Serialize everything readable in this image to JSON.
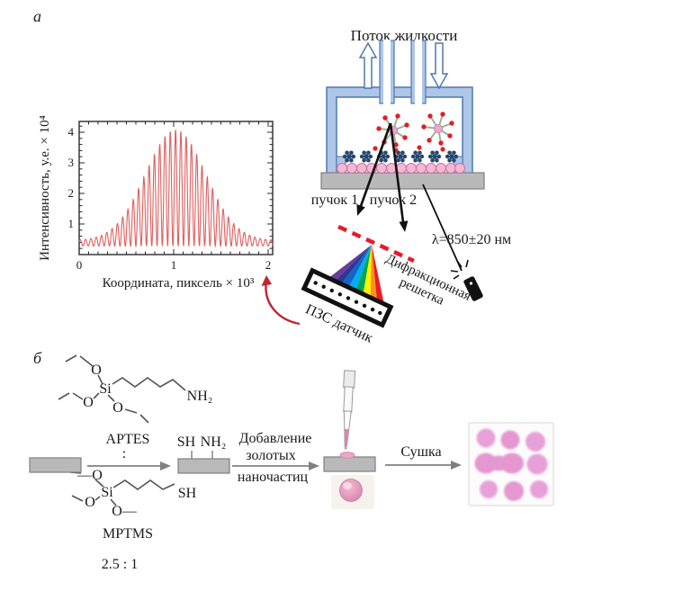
{
  "panels": {
    "a_label": "а",
    "b_label": "б"
  },
  "chart": {
    "xlabel": "Координата, пиксель × 10³",
    "ylabel": "Интенсивность, у.е. × 10⁴",
    "xtick_labels": [
      "0",
      "1",
      "2"
    ],
    "ytick_labels": [
      "1",
      "2",
      "3",
      "4"
    ]
  },
  "chart_data": {
    "type": "line",
    "title": "",
    "xlabel": "Координата, пиксель × 10³",
    "ylabel": "Интенсивность, у.е. × 10⁴",
    "xlim": [
      0,
      2.05
    ],
    "ylim": [
      0,
      4.35
    ],
    "xticks": [
      0,
      1,
      2
    ],
    "yticks": [
      1,
      2,
      3,
      4
    ],
    "grid": false,
    "legend": "none",
    "series": [
      {
        "name": "interference fringe intensity",
        "description": "oscillating fringes under a Gaussian envelope; baseline ~0.3, peak ~4.1 at x~1.0, fringe period ~0.056 (×10³ pixels)",
        "model": "I(x)=base+(amp_floor+amp_peak*exp(-((x-center)/sigma)^2))*(1+cos(2*pi*(x-center)/period))/2",
        "base": 0.28,
        "amp_floor": 0.18,
        "amp_peak": 3.62,
        "center": 1.02,
        "sigma": 0.45,
        "period": 0.056,
        "color": "#df5f5f"
      }
    ]
  },
  "flow_cell": {
    "title": "Поток жидкости"
  },
  "optics": {
    "beam1": "пучок 1",
    "beam2": "пучок 2",
    "wavelength": "λ=850±20 нм",
    "grating_line1": "Дифракционная",
    "grating_line2": "решетка",
    "ccd": "ПЗС датчик"
  },
  "chem": {
    "aptes_name": "APTES",
    "mptms_name": "MPTMS",
    "colon": ":",
    "ratio": "2.5 : 1",
    "atom_o": "O",
    "atom_si": "Si",
    "amine": "NH₂",
    "thiol": "SH",
    "dash_o": "—O",
    "o_dash": "O—",
    "step1_line1": "Добавление",
    "step1_line2": "золотых",
    "step1_line3": "наночастиц",
    "step2": "Сушка"
  },
  "colors": {
    "curve_red": "#df5f5f",
    "grating_dash_red": "#e8192c",
    "cell_blue_fill": "#aec6e8",
    "cell_blue_stroke": "#4f78b0",
    "substrate_gray": "#b9b9b9",
    "nanoparticle_pink": "#f3b9d3",
    "receptor_navy": "#26456e",
    "analyte_red": "#e01f26",
    "spot_pink": "#e79ad5",
    "rainbow": [
      "#6a3d9a",
      "#2b3990",
      "#1464c8",
      "#00aeef",
      "#00a651",
      "#fff200",
      "#f7941d",
      "#ed1c24"
    ]
  }
}
